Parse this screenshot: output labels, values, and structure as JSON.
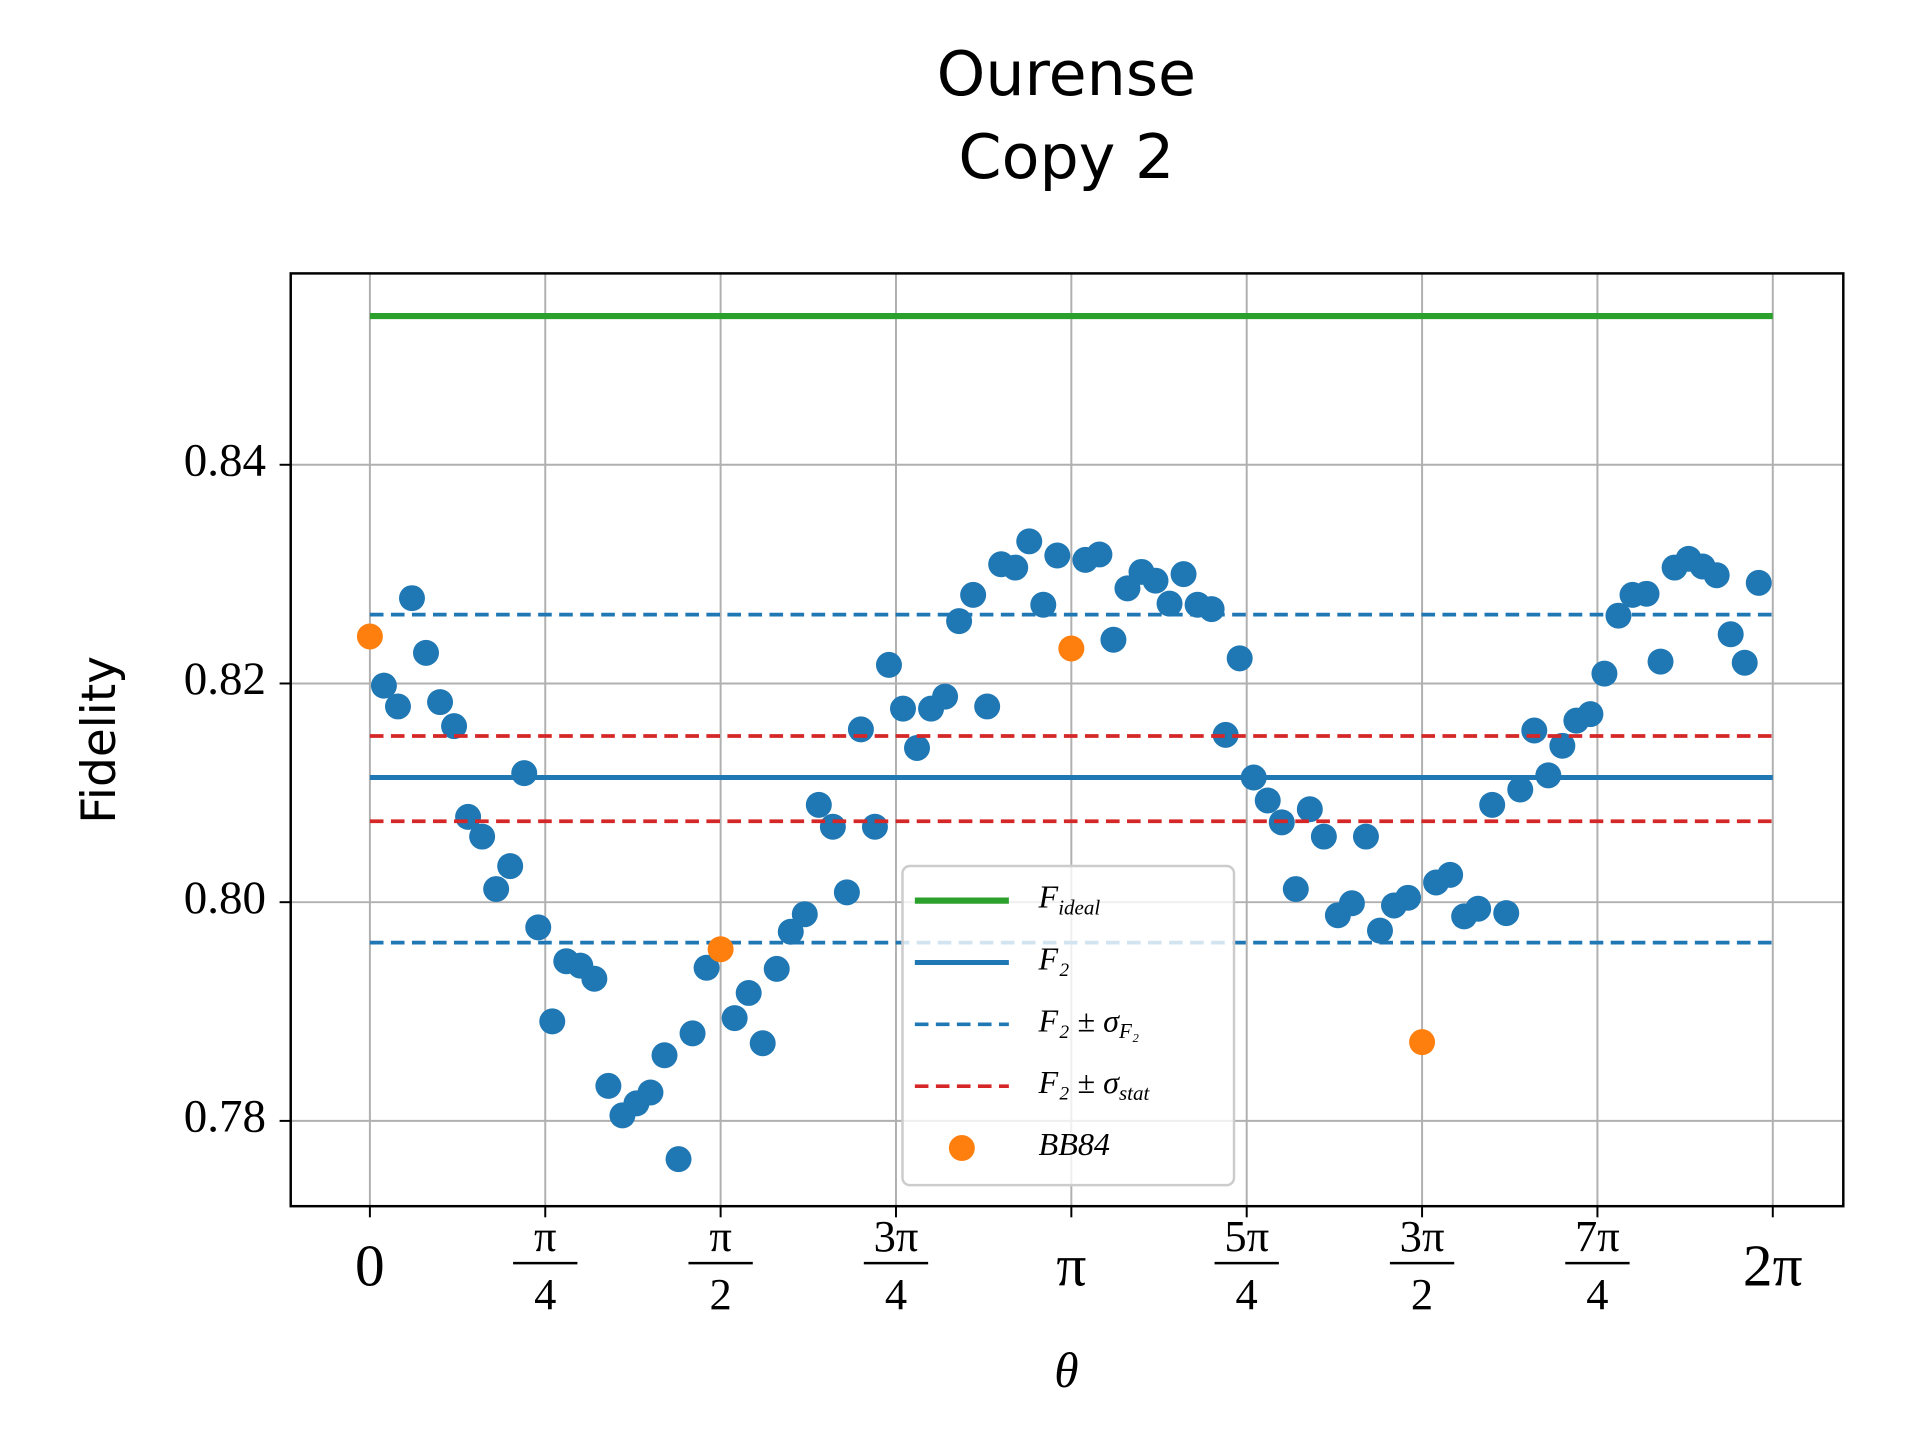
{
  "chart_data": {
    "type": "scatter",
    "title": [
      "Ourense",
      "Copy 2"
    ],
    "xlabel": "θ",
    "ylabel": "Fidelity",
    "xlim": [
      -0.3546,
      6.599
    ],
    "ylim": [
      0.7722,
      0.8575
    ],
    "xticks": [
      0,
      {
        "value": 0.7854,
        "label": [
          "π",
          "4"
        ]
      },
      {
        "value": 1.5708,
        "label": [
          "π",
          "2"
        ]
      },
      {
        "value": 2.3562,
        "label": [
          "3π",
          "4"
        ]
      },
      {
        "value": 3.1416,
        "label": "π"
      },
      {
        "value": 3.927,
        "label": [
          "5π",
          "4"
        ]
      },
      {
        "value": 4.7124,
        "label": [
          "3π",
          "2"
        ]
      },
      {
        "value": 5.4978,
        "label": [
          "7π",
          "4"
        ]
      },
      {
        "value": 6.2832,
        "label": "2π"
      }
    ],
    "yticks": [
      0.78,
      {
        "value": 0.8,
        "label": "0.80"
      },
      0.82,
      0.84
    ],
    "grid": true,
    "legend": "lower center",
    "series": [
      {
        "kind": "scatter",
        "color": "#1f77b4",
        "x": [
          0.0628,
          0.1257,
          0.1885,
          0.2513,
          0.3142,
          0.377,
          0.4398,
          0.5027,
          0.5655,
          0.6283,
          0.6912,
          0.754,
          0.8168,
          0.8796,
          0.9425,
          1.0053,
          1.0681,
          1.131,
          1.1938,
          1.2566,
          1.3195,
          1.3823,
          1.4451,
          1.508,
          1.6336,
          1.6965,
          1.7593,
          1.8221,
          1.885,
          1.9478,
          2.0106,
          2.0735,
          2.1363,
          2.1991,
          2.2619,
          2.3248,
          2.3876,
          2.4504,
          2.5133,
          2.5761,
          2.6389,
          2.7018,
          2.7646,
          2.8274,
          2.8903,
          2.9531,
          3.0159,
          3.0788,
          3.2044,
          3.2673,
          3.3301,
          3.3929,
          3.4558,
          3.5186,
          3.5814,
          3.6442,
          3.7071,
          3.7699,
          3.8327,
          3.8956,
          3.9584,
          4.0212,
          4.0841,
          4.1469,
          4.2097,
          4.2726,
          4.3354,
          4.3982,
          4.4611,
          4.5239,
          4.5867,
          4.6496,
          4.7752,
          4.8381,
          4.9009,
          4.9637,
          5.0265,
          5.0894,
          5.1522,
          5.215,
          5.2779,
          5.3407,
          5.4035,
          5.4664,
          5.5292,
          5.592,
          5.6549,
          5.7177,
          5.7805,
          5.8434,
          5.9062,
          5.969,
          6.0319,
          6.0947,
          6.1575,
          6.2204
        ],
        "values": [
          0.8198,
          0.8179,
          0.8278,
          0.8228,
          0.8183,
          0.8161,
          0.8078,
          0.806,
          0.8012,
          0.8033,
          0.8118,
          0.7977,
          0.7891,
          0.7946,
          0.7942,
          0.793,
          0.7832,
          0.7805,
          0.7816,
          0.7826,
          0.786,
          0.7765,
          0.788,
          0.794,
          0.7894,
          0.7917,
          0.7871,
          0.7939,
          0.7973,
          0.7989,
          0.8089,
          0.8069,
          0.8009,
          0.8158,
          0.8069,
          0.8217,
          0.8177,
          0.8141,
          0.8177,
          0.8188,
          0.8257,
          0.8281,
          0.8179,
          0.8309,
          0.8306,
          0.833,
          0.8272,
          0.8317,
          0.8313,
          0.8318,
          0.824,
          0.8287,
          0.8302,
          0.8294,
          0.8273,
          0.83,
          0.8272,
          0.8268,
          0.8153,
          0.8223,
          0.8114,
          0.8093,
          0.8073,
          0.8012,
          0.8085,
          0.806,
          0.7988,
          0.7999,
          0.806,
          0.7974,
          0.7997,
          0.8004,
          0.8018,
          0.8025,
          0.7987,
          0.7994,
          0.8089,
          0.799,
          0.8103,
          0.8157,
          0.8116,
          0.8143,
          0.8166,
          0.8172,
          0.8209,
          0.8262,
          0.8281,
          0.8282,
          0.822,
          0.8306,
          0.8314,
          0.8307,
          0.8299,
          0.8245,
          0.8219,
          0.8292
        ]
      },
      {
        "kind": "hline",
        "name": [
          "F",
          "ideal"
        ],
        "color": "#2ca02c",
        "style": "solid",
        "width": 5,
        "levels": [
          0.8536
        ]
      },
      {
        "kind": "hline",
        "name": [
          "F₂"
        ],
        "color": "#1f77b4",
        "style": "solid",
        "width": 4,
        "levels": [
          0.8114
        ]
      },
      {
        "kind": "hline",
        "name": [
          "F₂ ± σ",
          "F₂"
        ],
        "color": "#1f77b4",
        "style": "dashed",
        "width": 3,
        "levels": [
          0.8263,
          0.7963
        ]
      },
      {
        "kind": "hline",
        "name": [
          "F₂ ± σ",
          "stat"
        ],
        "color": "#d62728",
        "style": "dashed",
        "width": 3,
        "levels": [
          0.8152,
          0.8074
        ]
      },
      {
        "kind": "scatter",
        "name": [
          "BB84"
        ],
        "color": "#ff7f0e",
        "x": [
          0,
          1.5708,
          3.1416,
          4.7124
        ],
        "values": [
          0.8243,
          0.7957,
          0.8232,
          0.7872
        ]
      }
    ]
  }
}
